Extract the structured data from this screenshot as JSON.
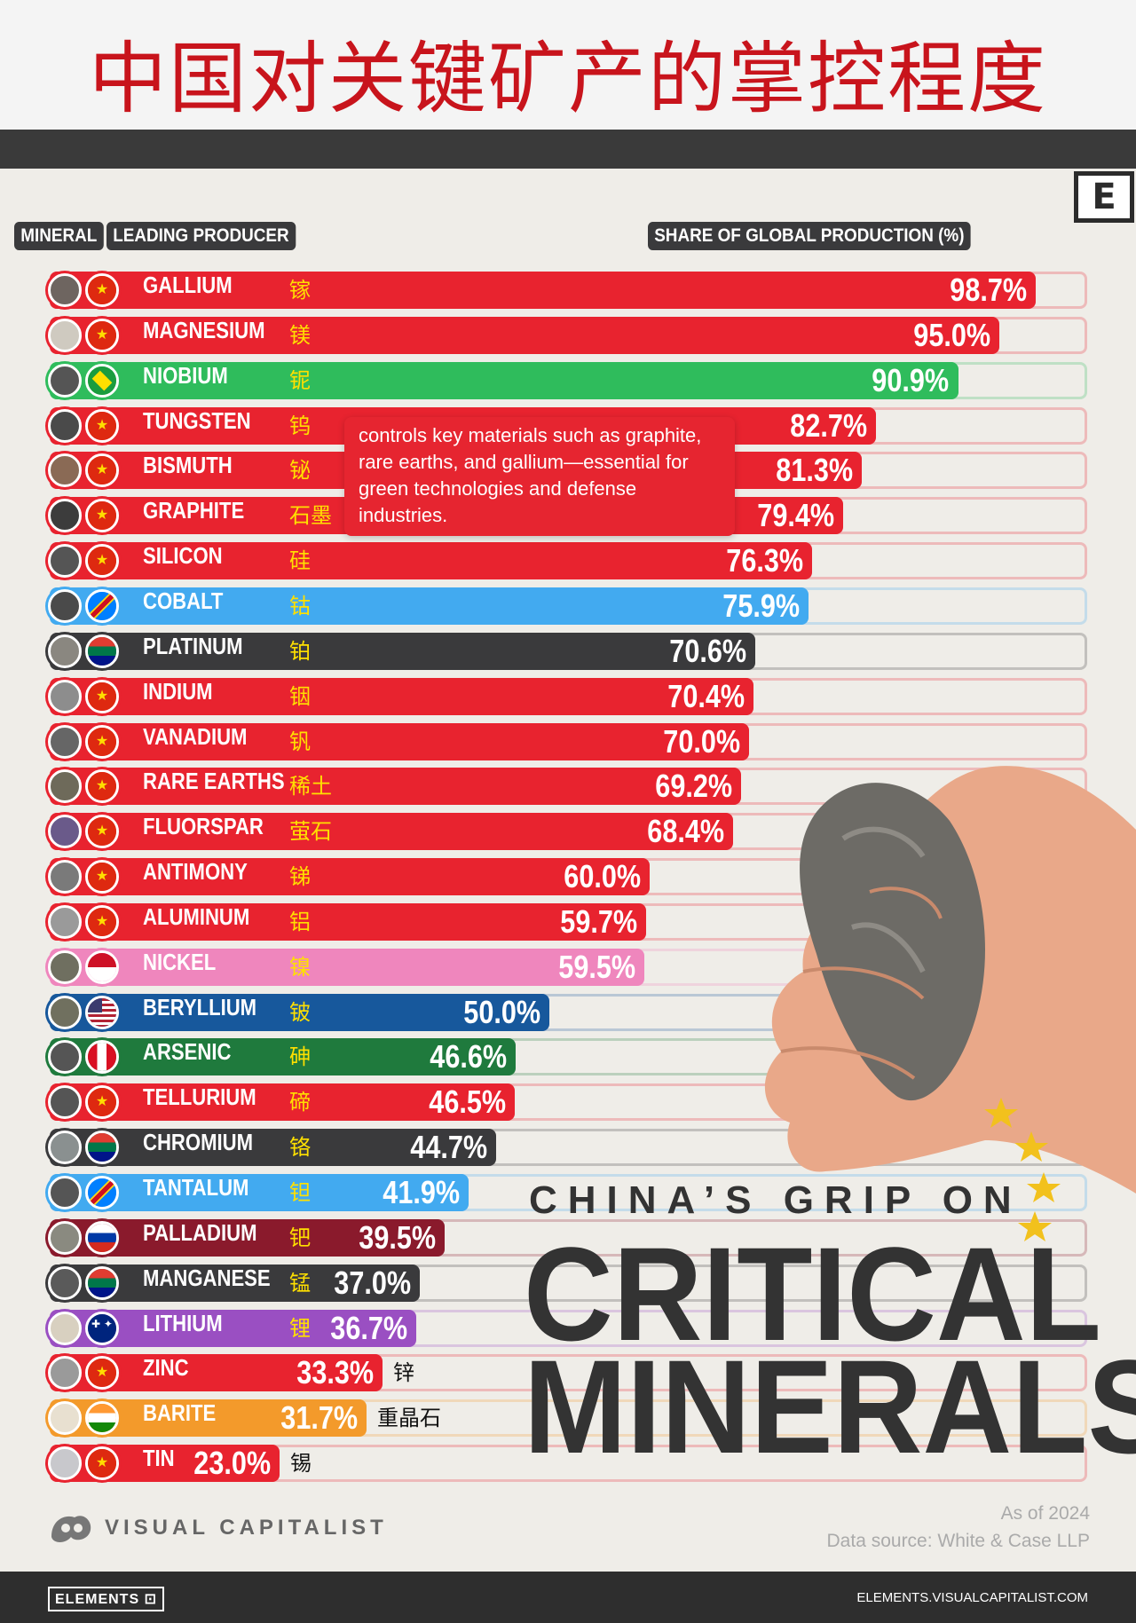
{
  "title": "中国对关键矿产的掌控程度",
  "logo_letter": "E",
  "headers": {
    "mineral": "MINERAL",
    "producer": "LEADING PRODUCER",
    "share": "SHARE OF GLOBAL PRODUCTION (%)"
  },
  "tooltip": "controls key materials such as graphite, rare earths, and gallium—essential for green technologies and defense industries.",
  "headline": {
    "line1": "CHINA’S GRIP ON",
    "line2": "CRITICAL",
    "line3": "MINERALS"
  },
  "brand": "VISUAL CAPITALIST",
  "as_of": "As of 2024",
  "source": "Data source: White & Case LLP",
  "footer": {
    "elements": "ELEMENTS",
    "url": "ELEMENTS.VISUALCAPITALIST.COM"
  },
  "colors": {
    "china": "#e8232f",
    "brazil": "#2fbc5c",
    "drc": "#42aaf0",
    "south_africa": "#3a3a3c",
    "indonesia": "#ef86bd",
    "usa": "#17589c",
    "peru": "#1f7a3d",
    "russia": "#8a1a2c",
    "australia": "#9a4fc2",
    "india": "#f39a2b"
  },
  "chart_data": {
    "type": "bar",
    "orientation": "horizontal",
    "xlabel": "SHARE OF GLOBAL PRODUCTION (%)",
    "xlim": [
      0,
      100
    ],
    "rows": [
      {
        "mineral": "GALLIUM",
        "cn": "镓",
        "producer": "china",
        "value": 98.7,
        "label": "98.7%"
      },
      {
        "mineral": "MAGNESIUM",
        "cn": "镁",
        "producer": "china",
        "value": 95.0,
        "label": "95.0%"
      },
      {
        "mineral": "NIOBIUM",
        "cn": "铌",
        "producer": "brazil",
        "value": 90.9,
        "label": "90.9%"
      },
      {
        "mineral": "TUNGSTEN",
        "cn": "钨",
        "producer": "china",
        "value": 82.7,
        "label": "82.7%"
      },
      {
        "mineral": "BISMUTH",
        "cn": "铋",
        "producer": "china",
        "value": 81.3,
        "label": "81.3%"
      },
      {
        "mineral": "GRAPHITE",
        "cn": "石墨",
        "producer": "china",
        "value": 79.4,
        "label": "79.4%"
      },
      {
        "mineral": "SILICON",
        "cn": "硅",
        "producer": "china",
        "value": 76.3,
        "label": "76.3%"
      },
      {
        "mineral": "COBALT",
        "cn": "钴",
        "producer": "drc",
        "value": 75.9,
        "label": "75.9%"
      },
      {
        "mineral": "PLATINUM",
        "cn": "铂",
        "producer": "south_africa",
        "value": 70.6,
        "label": "70.6%"
      },
      {
        "mineral": "INDIUM",
        "cn": "铟",
        "producer": "china",
        "value": 70.4,
        "label": "70.4%"
      },
      {
        "mineral": "VANADIUM",
        "cn": "钒",
        "producer": "china",
        "value": 70.0,
        "label": "70.0%"
      },
      {
        "mineral": "RARE EARTHS",
        "cn": "稀土",
        "producer": "china",
        "value": 69.2,
        "label": "69.2%"
      },
      {
        "mineral": "FLUORSPAR",
        "cn": "萤石",
        "producer": "china",
        "value": 68.4,
        "label": "68.4%"
      },
      {
        "mineral": "ANTIMONY",
        "cn": "锑",
        "producer": "china",
        "value": 60.0,
        "label": "60.0%"
      },
      {
        "mineral": "ALUMINUM",
        "cn": "铝",
        "producer": "china",
        "value": 59.7,
        "label": "59.7%"
      },
      {
        "mineral": "NICKEL",
        "cn": "镍",
        "producer": "indonesia",
        "value": 59.5,
        "label": "59.5%"
      },
      {
        "mineral": "BERYLLIUM",
        "cn": "铍",
        "producer": "usa",
        "value": 50.0,
        "label": "50.0%"
      },
      {
        "mineral": "ARSENIC",
        "cn": "砷",
        "producer": "peru",
        "value": 46.6,
        "label": "46.6%"
      },
      {
        "mineral": "TELLURIUM",
        "cn": "碲",
        "producer": "china",
        "value": 46.5,
        "label": "46.5%"
      },
      {
        "mineral": "CHROMIUM",
        "cn": "铬",
        "producer": "south_africa",
        "value": 44.7,
        "label": "44.7%"
      },
      {
        "mineral": "TANTALUM",
        "cn": "钽",
        "producer": "drc",
        "value": 41.9,
        "label": "41.9%"
      },
      {
        "mineral": "PALLADIUM",
        "cn": "钯",
        "producer": "russia",
        "value": 39.5,
        "label": "39.5%"
      },
      {
        "mineral": "MANGANESE",
        "cn": "锰",
        "producer": "south_africa",
        "value": 37.0,
        "label": "37.0%"
      },
      {
        "mineral": "LITHIUM",
        "cn": "锂",
        "producer": "australia",
        "value": 36.7,
        "label": "36.7%"
      },
      {
        "mineral": "ZINC",
        "cn": "锌",
        "producer": "china",
        "value": 33.3,
        "label": "33.3%"
      },
      {
        "mineral": "BARITE",
        "cn": "重晶石",
        "producer": "india",
        "value": 31.7,
        "label": "31.7%"
      },
      {
        "mineral": "TIN",
        "cn": "锡",
        "producer": "china",
        "value": 23.0,
        "label": "23.0%"
      }
    ]
  }
}
